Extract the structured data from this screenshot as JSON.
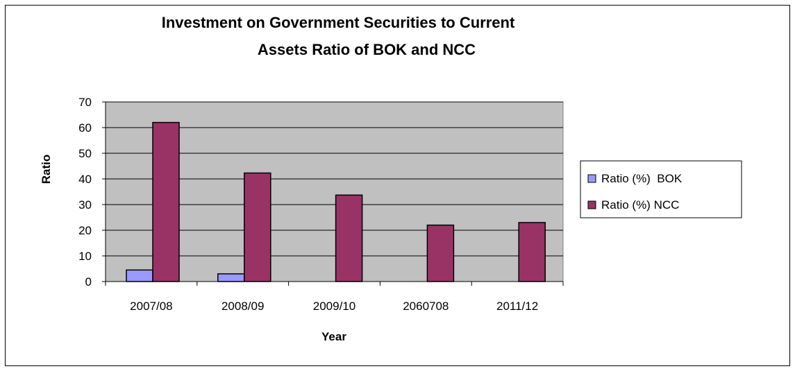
{
  "chart_data": {
    "type": "bar",
    "title_line1": "Investment on Government Securities to Current",
    "title_line2": "Assets Ratio of  BOK   and NCC",
    "xlabel": "Year",
    "ylabel": "Ratio",
    "categories": [
      "2007/08",
      "2008/09",
      "2009/10",
      "2060708",
      "2011/12"
    ],
    "series": [
      {
        "name": "Ratio (%)  BOK",
        "values": [
          4.5,
          3.0,
          0,
          0,
          0
        ],
        "color": "#9999ff"
      },
      {
        "name": "Ratio (%) NCC",
        "values": [
          62,
          42.3,
          33.7,
          22,
          23
        ],
        "color": "#993366"
      }
    ],
    "ylim": [
      0,
      70
    ],
    "yticks": [
      0,
      10,
      20,
      30,
      40,
      50,
      60,
      70
    ],
    "grid": true,
    "plot_background": "#c0c0c0",
    "legend_position": "right"
  }
}
